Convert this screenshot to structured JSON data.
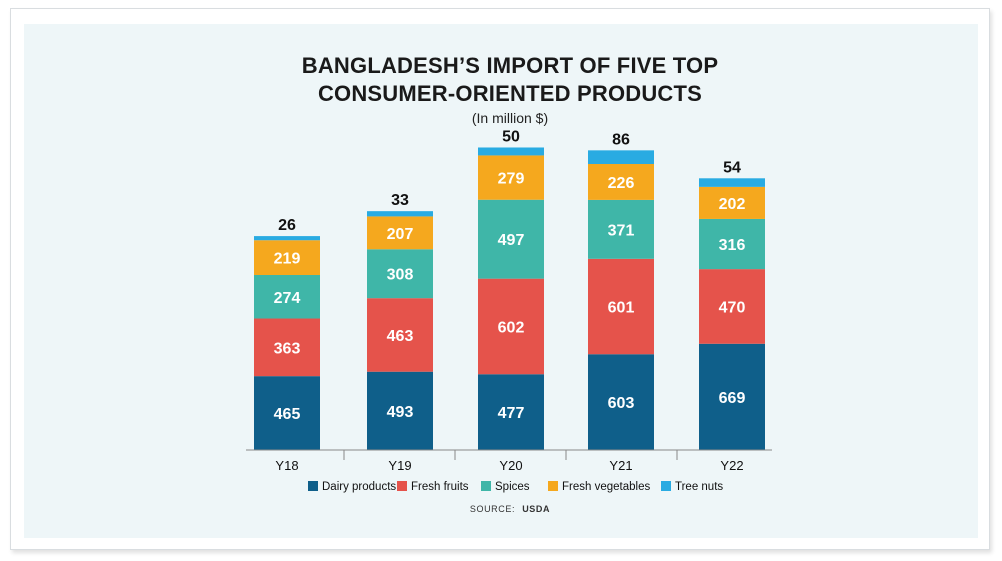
{
  "chart_data": {
    "type": "bar",
    "stacked": true,
    "title": "BANGLADESH'S IMPORT OF FIVE TOP CONSUMER-ORIENTED PRODUCTS",
    "title_lines": [
      "BANGLADESH’S IMPORT OF FIVE TOP",
      "CONSUMER-ORIENTED PRODUCTS"
    ],
    "subtitle": "(In million $)",
    "categories": [
      "Y18",
      "Y19",
      "Y20",
      "Y21",
      "Y22"
    ],
    "series": [
      {
        "name": "Dairy products",
        "color": "#0f5f8a",
        "values": [
          465,
          493,
          477,
          603,
          669
        ]
      },
      {
        "name": "Fresh fruits",
        "color": "#e5534b",
        "values": [
          363,
          463,
          602,
          601,
          470
        ]
      },
      {
        "name": "Spices",
        "color": "#3fb6a8",
        "values": [
          274,
          308,
          497,
          371,
          316
        ]
      },
      {
        "name": "Fresh vegetables",
        "color": "#f5a81e",
        "values": [
          219,
          207,
          279,
          226,
          202
        ]
      },
      {
        "name": "Tree nuts",
        "color": "#29abe2",
        "values": [
          26,
          33,
          50,
          86,
          54
        ]
      }
    ],
    "legend_position": "bottom",
    "grid": false,
    "source_label": "SOURCE:",
    "source_value": "USDA"
  }
}
